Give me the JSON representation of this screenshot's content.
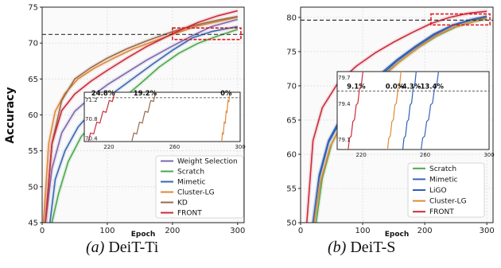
{
  "captions": [
    {
      "label": "(a)",
      "text": "DeiT-Ti"
    },
    {
      "label": "(b)",
      "text": "DeiT-S"
    }
  ],
  "colors": {
    "weight_selection": "#7b68ae",
    "scratch": "#4aa84a",
    "mimetic": "#3a66b0",
    "cluster_lg": "#e08838",
    "kd": "#9a6a4a",
    "front": "#cc2a3a",
    "ligo": "#2f5fb5",
    "highlight_box": "#e8141e",
    "reference_line": "#333333"
  },
  "chart_data": [
    {
      "type": "line",
      "xlabel": "Epoch",
      "ylabel": "Accuracy",
      "xlim": [
        0,
        310
      ],
      "ylim": [
        45,
        75
      ],
      "xticks": [
        0,
        100,
        200,
        300
      ],
      "yticks": [
        45,
        50,
        55,
        60,
        65,
        70,
        75
      ],
      "grid": true,
      "legend": "lower-right",
      "reference_line": 71.2,
      "highlight_region": {
        "x": [
          200,
          305
        ],
        "y": [
          70.5,
          72.1
        ]
      },
      "series": [
        {
          "name": "Weight Selection",
          "x": [
            5,
            15,
            30,
            50,
            75,
            100,
            130,
            160,
            200,
            230,
            260,
            300
          ],
          "y": [
            45,
            52.5,
            57.5,
            60.5,
            62.5,
            64.2,
            65.9,
            67.6,
            69.6,
            71.0,
            72.3,
            73.3
          ]
        },
        {
          "name": "Scratch",
          "x": [
            15,
            25,
            40,
            60,
            90,
            120,
            150,
            180,
            210,
            240,
            270,
            300
          ],
          "y": [
            45,
            49,
            53.5,
            57,
            60,
            62,
            64.3,
            66.7,
            68.6,
            70.0,
            71.0,
            71.9
          ]
        },
        {
          "name": "Mimetic",
          "x": [
            12,
            20,
            35,
            55,
            80,
            110,
            140,
            170,
            200,
            230,
            260,
            300
          ],
          "y": [
            45,
            51,
            55,
            58.3,
            60.9,
            63.1,
            65.1,
            67.1,
            69.0,
            70.7,
            71.6,
            72.3
          ]
        },
        {
          "name": "Cluster-LG",
          "x": [
            2,
            10,
            20,
            35,
            55,
            80,
            110,
            140,
            170,
            200,
            240,
            300
          ],
          "y": [
            45,
            56,
            60.5,
            63,
            65,
            66.5,
            67.9,
            69.2,
            70.2,
            71.2,
            72.4,
            73.6
          ]
        },
        {
          "name": "KD",
          "x": [
            5,
            15,
            30,
            50,
            75,
            100,
            130,
            160,
            200,
            240,
            270,
            300
          ],
          "y": [
            45,
            56,
            62,
            65,
            66.6,
            67.9,
            69.2,
            70.3,
            71.6,
            72.6,
            73.2,
            73.7
          ]
        },
        {
          "name": "FRONT",
          "x": [
            5,
            15,
            30,
            50,
            75,
            100,
            130,
            160,
            200,
            240,
            270,
            300
          ],
          "y": [
            45,
            56,
            60.6,
            62.9,
            64.7,
            66.2,
            67.9,
            69.5,
            71.3,
            72.9,
            73.8,
            74.5
          ]
        }
      ],
      "inset": {
        "xlim": [
          205,
          300
        ],
        "ylim": [
          70.4,
          71.3
        ],
        "xticks": [
          220,
          260,
          300
        ],
        "yticks_labels": [
          "71.2",
          "70.8",
          "70.4"
        ],
        "reference_line": 71.2,
        "annotations": [
          "24.8%",
          "19.2%",
          "0%"
        ]
      }
    },
    {
      "type": "line",
      "xlabel": "Epoch",
      "ylabel": "",
      "xlim": [
        0,
        310
      ],
      "ylim": [
        50,
        81.5
      ],
      "xticks": [
        0,
        100,
        200,
        300
      ],
      "yticks": [
        50,
        55,
        60,
        65,
        70,
        75,
        80
      ],
      "grid": true,
      "legend": "lower-right",
      "reference_line": 79.6,
      "highlight_region": {
        "x": [
          210,
          305
        ],
        "y": [
          78.9,
          80.5
        ]
      },
      "series": [
        {
          "name": "Scratch",
          "x": [
            25,
            35,
            50,
            70,
            100,
            130,
            160,
            190,
            220,
            250,
            280,
            300
          ],
          "y": [
            50,
            56.5,
            61.5,
            65.1,
            68.6,
            71.3,
            73.6,
            75.6,
            77.3,
            78.6,
            79.4,
            79.8
          ]
        },
        {
          "name": "Mimetic",
          "x": [
            20,
            30,
            45,
            65,
            95,
            125,
            155,
            185,
            215,
            245,
            275,
            300
          ],
          "y": [
            50,
            57,
            62,
            65.4,
            68.9,
            71.5,
            73.8,
            75.8,
            77.6,
            78.9,
            79.7,
            80.2
          ]
        },
        {
          "name": "LiGO",
          "x": [
            20,
            30,
            45,
            65,
            95,
            125,
            155,
            185,
            215,
            245,
            275,
            300
          ],
          "y": [
            50,
            56.5,
            61.7,
            65,
            68.5,
            71.2,
            73.6,
            75.6,
            77.4,
            78.8,
            79.6,
            80.0
          ]
        },
        {
          "name": "Cluster-LG",
          "x": [
            22,
            32,
            48,
            68,
            98,
            128,
            158,
            188,
            218,
            248,
            278,
            300
          ],
          "y": [
            50,
            56,
            61.2,
            64.7,
            68.3,
            71.0,
            73.4,
            75.5,
            77.3,
            78.6,
            79.4,
            79.9
          ]
        },
        {
          "name": "FRONT",
          "x": [
            10,
            20,
            35,
            60,
            90,
            120,
            150,
            180,
            210,
            240,
            270,
            300
          ],
          "y": [
            50,
            62,
            66.8,
            70.4,
            72.9,
            74.8,
            76.4,
            77.8,
            79.1,
            80.0,
            80.6,
            80.9
          ]
        }
      ],
      "inset": {
        "xlim": [
          205,
          300
        ],
        "ylim": [
          79.0,
          79.8
        ],
        "xticks": [
          220,
          260,
          300
        ],
        "yticks_labels": [
          "79.7",
          "79.4",
          "79.1"
        ],
        "reference_line": 79.6,
        "annotations": [
          "9.1%",
          "0.0%",
          "-4.3%",
          "-13.4%"
        ]
      }
    }
  ]
}
